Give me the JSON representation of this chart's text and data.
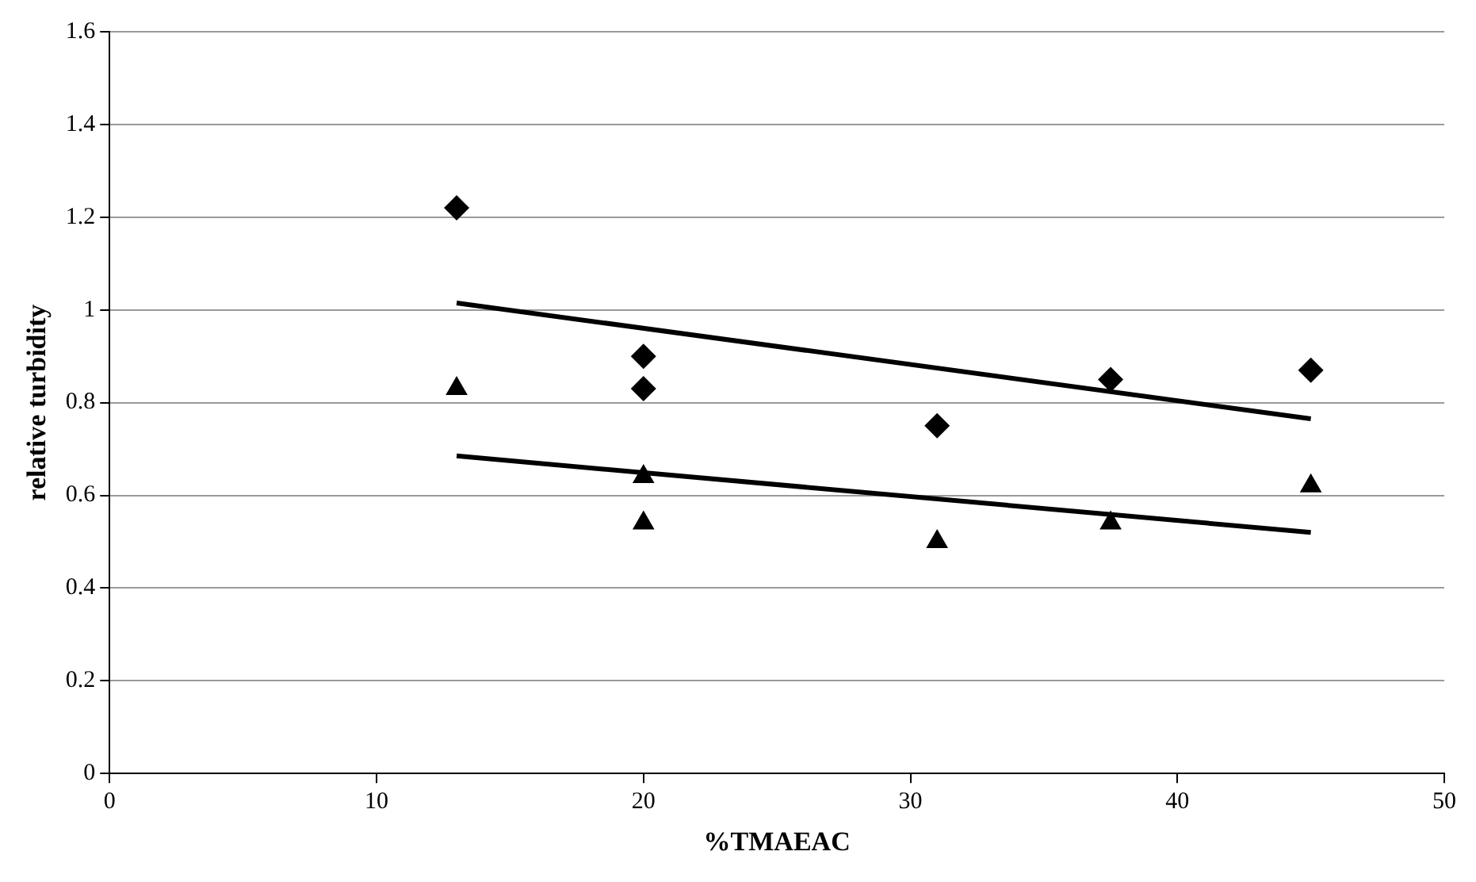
{
  "chart_data": {
    "type": "scatter",
    "xlabel": "%TMAEAC",
    "ylabel": "relative turbidity",
    "xlim": [
      0,
      50
    ],
    "xticks": [
      0,
      10,
      20,
      30,
      40,
      50
    ],
    "ylim": [
      0,
      1.6
    ],
    "yticks": [
      0,
      0.2,
      0.4,
      0.6,
      0.8,
      1,
      1.2,
      1.4,
      1.6
    ],
    "grid": "y",
    "legend": false,
    "series": [
      {
        "type": "scatter",
        "marker": "diamond",
        "color": "#000000",
        "x": [
          13,
          20,
          20,
          31,
          37.5,
          45
        ],
        "values": [
          1.22,
          0.9,
          0.83,
          0.75,
          0.85,
          0.87
        ]
      },
      {
        "type": "scatter",
        "marker": "triangle",
        "color": "#000000",
        "x": [
          13,
          20,
          20,
          31,
          37.5,
          45
        ],
        "values": [
          0.83,
          0.64,
          0.54,
          0.5,
          0.54,
          0.62
        ]
      },
      {
        "type": "line",
        "marker": "none",
        "color": "#000000",
        "x": [
          13,
          45
        ],
        "values": [
          1.015,
          0.765
        ]
      },
      {
        "type": "line",
        "marker": "none",
        "color": "#000000",
        "x": [
          13,
          45
        ],
        "values": [
          0.685,
          0.52
        ]
      }
    ]
  }
}
